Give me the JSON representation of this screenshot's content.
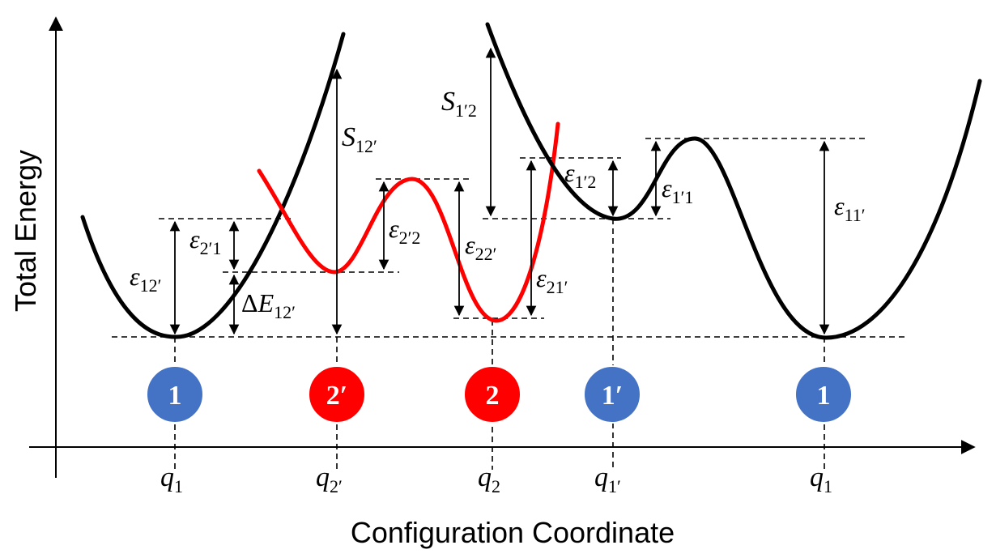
{
  "axes": {
    "y_title": "Total Energy",
    "x_title": "Configuration Coordinate"
  },
  "curves": [
    {
      "name": "black-left",
      "color": "#000000"
    },
    {
      "name": "red",
      "color": "#ff0000"
    },
    {
      "name": "black-right",
      "color": "#000000"
    }
  ],
  "states": [
    {
      "label": "1",
      "color": "#4472c4"
    },
    {
      "label": "2′",
      "color": "#ff0000"
    },
    {
      "label": "2",
      "color": "#ff0000"
    },
    {
      "label": "1′",
      "color": "#4472c4"
    },
    {
      "label": "1",
      "color": "#4472c4"
    }
  ],
  "coords": [
    {
      "sym": "q",
      "sub": "1"
    },
    {
      "sym": "q",
      "sub": "2′"
    },
    {
      "sym": "q",
      "sub": "2"
    },
    {
      "sym": "q",
      "sub": "1′"
    },
    {
      "sym": "q",
      "sub": "1"
    }
  ],
  "labels": {
    "eps_12p": {
      "sym": "ε",
      "sub": "12′"
    },
    "eps_2p1": {
      "sym": "ε",
      "sub": "2′1"
    },
    "dE_12p": {
      "pre": "Δ",
      "sym": "E",
      "sub": "12′"
    },
    "S_12p": {
      "sym": "S",
      "sub": "12′"
    },
    "eps_2p2": {
      "sym": "ε",
      "sub": "2′2"
    },
    "eps_22p": {
      "sym": "ε",
      "sub": "22′"
    },
    "S_1p2": {
      "sym": "S",
      "sub": "1′2"
    },
    "eps_21p": {
      "sym": "ε",
      "sub": "21′"
    },
    "eps_1p2": {
      "sym": "ε",
      "sub": "1′2"
    },
    "eps_1p1": {
      "sym": "ε",
      "sub": "1′1"
    },
    "eps_11p": {
      "sym": "ε",
      "sub": "11′"
    }
  }
}
